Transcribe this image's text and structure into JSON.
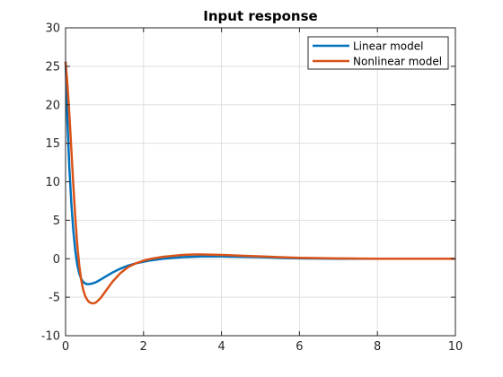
{
  "chart_data": {
    "type": "line",
    "title": "Input response",
    "xlabel": "",
    "ylabel": "",
    "xlim": [
      0,
      10
    ],
    "ylim": [
      -10,
      30
    ],
    "xticks": [
      0,
      2,
      4,
      6,
      8,
      10
    ],
    "yticks": [
      -10,
      -5,
      0,
      5,
      10,
      15,
      20,
      25,
      30
    ],
    "grid": true,
    "legend_position": "top-right",
    "series": [
      {
        "name": "Linear model",
        "color": "#0072bd",
        "x": [
          0,
          0.05,
          0.1,
          0.15,
          0.2,
          0.25,
          0.3,
          0.35,
          0.4,
          0.45,
          0.5,
          0.55,
          0.6,
          0.65,
          0.7,
          0.8,
          0.9,
          1.0,
          1.2,
          1.4,
          1.6,
          1.8,
          2.0,
          2.2,
          2.5,
          3.0,
          3.5,
          4.0,
          4.5,
          5.0,
          5.5,
          6.0,
          7.0,
          8.0,
          9.0,
          10.0
        ],
        "y": [
          25.6,
          17.5,
          11.5,
          7.0,
          3.6,
          1.0,
          -0.8,
          -1.9,
          -2.6,
          -3.0,
          -3.2,
          -3.3,
          -3.3,
          -3.25,
          -3.2,
          -3.0,
          -2.7,
          -2.4,
          -1.8,
          -1.3,
          -0.9,
          -0.6,
          -0.4,
          -0.2,
          0.0,
          0.2,
          0.3,
          0.3,
          0.25,
          0.2,
          0.1,
          0.05,
          0.0,
          0.0,
          0.0,
          0.0
        ]
      },
      {
        "name": "Nonlinear model",
        "color": "#d95319",
        "x": [
          0,
          0.05,
          0.1,
          0.15,
          0.2,
          0.25,
          0.3,
          0.35,
          0.4,
          0.45,
          0.5,
          0.55,
          0.6,
          0.65,
          0.7,
          0.75,
          0.8,
          0.9,
          1.0,
          1.1,
          1.2,
          1.4,
          1.6,
          1.8,
          2.0,
          2.2,
          2.5,
          3.0,
          3.3,
          3.5,
          4.0,
          4.5,
          5.0,
          5.5,
          6.0,
          7.0,
          8.0,
          9.0,
          10.0
        ],
        "y": [
          25.6,
          22.5,
          18.5,
          14.0,
          9.5,
          5.3,
          1.8,
          -0.8,
          -2.7,
          -4.0,
          -4.8,
          -5.3,
          -5.6,
          -5.75,
          -5.8,
          -5.75,
          -5.6,
          -5.1,
          -4.4,
          -3.7,
          -3.0,
          -1.9,
          -1.1,
          -0.6,
          -0.25,
          0.0,
          0.25,
          0.5,
          0.55,
          0.55,
          0.5,
          0.4,
          0.3,
          0.2,
          0.12,
          0.05,
          0.0,
          0.0,
          0.0
        ]
      }
    ]
  }
}
